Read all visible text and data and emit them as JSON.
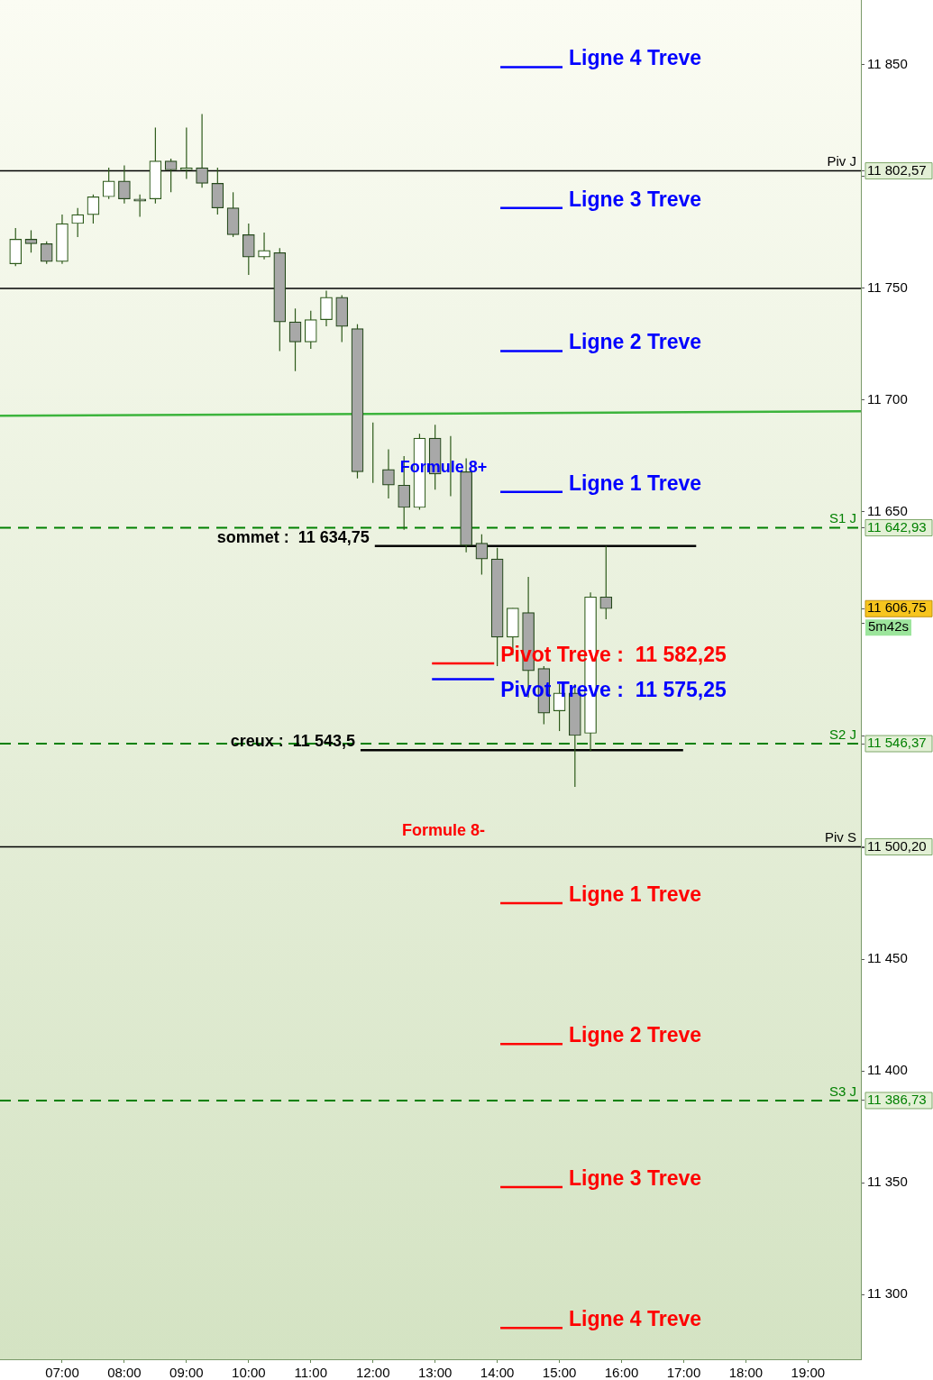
{
  "chart_data": {
    "type": "candlestick",
    "x": [
      6.25,
      6.5,
      6.75,
      7,
      7.25,
      7.5,
      7.75,
      8,
      8.25,
      8.5,
      8.75,
      9,
      9.25,
      9.5,
      9.75,
      10,
      10.25,
      10.5,
      10.75,
      11,
      11.25,
      11.5,
      11.75,
      12,
      12.25,
      12.5,
      12.75,
      13,
      13.25,
      13.5,
      13.75,
      14,
      14.25,
      14.5,
      14.75,
      15,
      15.25,
      15.5,
      15.75
    ],
    "ohlc": [
      [
        11761,
        11777,
        11760,
        11772
      ],
      [
        11772,
        11776,
        11766,
        11770
      ],
      [
        11770,
        11771,
        11761,
        11762
      ],
      [
        11762,
        11783,
        11761,
        11779
      ],
      [
        11779,
        11786,
        11773,
        11783
      ],
      [
        11783,
        11792,
        11779,
        11791
      ],
      [
        11791,
        11804,
        11790,
        11798
      ],
      [
        11798,
        11805,
        11788,
        11790
      ],
      [
        11790,
        11792,
        11782,
        11789
      ],
      [
        11790,
        11822,
        11788,
        11807
      ],
      [
        11807,
        11808,
        11793,
        11803
      ],
      [
        11803,
        11822,
        11799,
        11804
      ],
      [
        11804,
        11828,
        11795,
        11797
      ],
      [
        11797,
        11804,
        11783,
        11786
      ],
      [
        11786,
        11793,
        11773,
        11774
      ],
      [
        11774,
        11779,
        11756,
        11764
      ],
      [
        11764,
        11775,
        11763,
        11767
      ],
      [
        11766,
        11768,
        11722,
        11735
      ],
      [
        11735,
        11741,
        11713,
        11726
      ],
      [
        11726,
        11740,
        11723,
        11736
      ],
      [
        11736,
        11749,
        11733,
        11746
      ],
      [
        11746,
        11747,
        11726,
        11733
      ],
      [
        11732,
        11734,
        11665,
        11668
      ],
      [
        11668,
        11690,
        11663,
        11668
      ],
      [
        11669,
        11678,
        11656,
        11662
      ],
      [
        11662,
        11675,
        11642,
        11652
      ],
      [
        11652,
        11685,
        11651,
        11683
      ],
      [
        11683,
        11689,
        11660,
        11667
      ],
      [
        11668,
        11684,
        11657,
        11668
      ],
      [
        11668,
        11674,
        11632,
        11635
      ],
      [
        11636,
        11640,
        11622,
        11629
      ],
      [
        11629,
        11634,
        11581,
        11594
      ],
      [
        11594,
        11607,
        11586,
        11607
      ],
      [
        11605,
        11621,
        11567,
        11579
      ],
      [
        11580,
        11581,
        11555,
        11560
      ],
      [
        11561,
        11573,
        11552,
        11569
      ],
      [
        11569,
        11573,
        11527,
        11550
      ],
      [
        11551,
        11614,
        11543,
        11612
      ],
      [
        11612,
        11634.75,
        11602,
        11606.75
      ]
    ],
    "series": [
      {
        "type": "line",
        "color": "#3cb43c",
        "x": [
          6,
          19.85
        ],
        "values": [
          11693,
          11695
        ]
      },
      {
        "type": "line",
        "name": "Ligne 4 Treve",
        "color": "#0000ff",
        "x": [
          14.05,
          15.05
        ],
        "values": [
          11849,
          11849
        ]
      },
      {
        "type": "line",
        "name": "Ligne 3 Treve",
        "color": "#0000ff",
        "x": [
          14.05,
          15.05
        ],
        "values": [
          11786,
          11786
        ]
      },
      {
        "type": "line",
        "name": "Ligne 2 Treve",
        "color": "#0000ff",
        "x": [
          14.05,
          15.05
        ],
        "values": [
          11722,
          11722
        ]
      },
      {
        "type": "line",
        "name": "Ligne 1 Treve",
        "color": "#0000ff",
        "x": [
          14.05,
          15.05
        ],
        "values": [
          11659,
          11659
        ]
      },
      {
        "type": "line",
        "name": "Pivot Treve :  11 582,25",
        "color": "#ff0000",
        "x": [
          12.95,
          13.95
        ],
        "values": [
          11582.25,
          11582.25
        ]
      },
      {
        "type": "line",
        "name": "Pivot Treve :  11 575,25",
        "color": "#0000ff",
        "x": [
          12.95,
          13.95
        ],
        "values": [
          11575.25,
          11575.25
        ]
      },
      {
        "type": "line",
        "name": "Ligne 1 Treve",
        "color": "#ff0000",
        "x": [
          14.05,
          15.05
        ],
        "values": [
          11475,
          11475
        ]
      },
      {
        "type": "line",
        "name": "Ligne 2 Treve",
        "color": "#ff0000",
        "x": [
          14.05,
          15.05
        ],
        "values": [
          11412,
          11412
        ]
      },
      {
        "type": "line",
        "name": "Ligne 3 Treve",
        "color": "#ff0000",
        "x": [
          14.05,
          15.05
        ],
        "values": [
          11348,
          11348
        ]
      },
      {
        "type": "line",
        "name": "Ligne 4 Treve",
        "color": "#ff0000",
        "x": [
          14.05,
          15.05
        ],
        "values": [
          11285,
          11285
        ]
      },
      {
        "type": "line",
        "name": "sommet :  11 634,75",
        "color": "#000000",
        "x": [
          12.03,
          17.2
        ],
        "values": [
          11634.75,
          11634.75
        ]
      },
      {
        "type": "line",
        "name": "creux :  11 543,5",
        "color": "#000000",
        "x": [
          11.8,
          16.99
        ],
        "values": [
          11543.5,
          11543.5
        ]
      }
    ],
    "ref_lines": [
      {
        "axis": "y",
        "value": 11802.57,
        "label": "Piv J",
        "color": "#000000"
      },
      {
        "axis": "y",
        "value": 11750,
        "label": null,
        "color": "#000000"
      },
      {
        "axis": "y",
        "value": 11642.93,
        "label": "S1 J",
        "color": "#008000",
        "line_style": "dashed"
      },
      {
        "axis": "y",
        "value": 11546.37,
        "label": "S2 J",
        "color": "#008000",
        "line_style": "dashed"
      },
      {
        "axis": "y",
        "value": 11500.2,
        "label": "Piv S",
        "color": "#000000"
      },
      {
        "axis": "y",
        "value": 11386.73,
        "label": "S3 J",
        "color": "#008000",
        "line_style": "dashed"
      }
    ],
    "annotations": [
      "Formule 8+",
      "Formule 8-",
      "5m42s"
    ],
    "xlim": [
      6,
      19.85
    ],
    "xticks": [
      {
        "value": 7,
        "label": "07:00"
      },
      {
        "value": 8,
        "label": "08:00"
      },
      {
        "value": 9,
        "label": "09:00"
      },
      {
        "value": 10,
        "label": "10:00"
      },
      {
        "value": 11,
        "label": "11:00"
      },
      {
        "value": 12,
        "label": "12:00"
      },
      {
        "value": 13,
        "label": "13:00"
      },
      {
        "value": 14,
        "label": "14:00"
      },
      {
        "value": 15,
        "label": "15:00"
      },
      {
        "value": 16,
        "label": "16:00"
      },
      {
        "value": 17,
        "label": "17:00"
      },
      {
        "value": 18,
        "label": "18:00"
      },
      {
        "value": 19,
        "label": "19:00"
      }
    ],
    "ylim": [
      11271,
      11879
    ],
    "yticks": [
      {
        "value": 11300,
        "label": "11 300"
      },
      {
        "value": 11350,
        "label": "11 350"
      },
      {
        "value": 11386.73,
        "label": "11 386,73"
      },
      {
        "value": 11400,
        "label": "11 400"
      },
      {
        "value": 11450,
        "label": "11 450"
      },
      {
        "value": 11500,
        "label": null
      },
      {
        "value": 11500.2,
        "label": "11 500,20"
      },
      {
        "value": 11546.37,
        "label": "11 546,37"
      },
      {
        "value": 11550,
        "label": null
      },
      {
        "value": 11600,
        "label": null
      },
      {
        "value": 11606.75,
        "label": "11 606,75"
      },
      {
        "value": 11642.93,
        "label": "11 642,93"
      },
      {
        "value": 11650,
        "label": "11 650"
      },
      {
        "value": 11700,
        "label": "11 700"
      },
      {
        "value": 11750,
        "label": "11 750"
      },
      {
        "value": 11800,
        "label": null
      },
      {
        "value": 11802.57,
        "label": "11 802,57"
      },
      {
        "value": 11850,
        "label": "11 850"
      }
    ],
    "legend": false,
    "grid": false
  }
}
